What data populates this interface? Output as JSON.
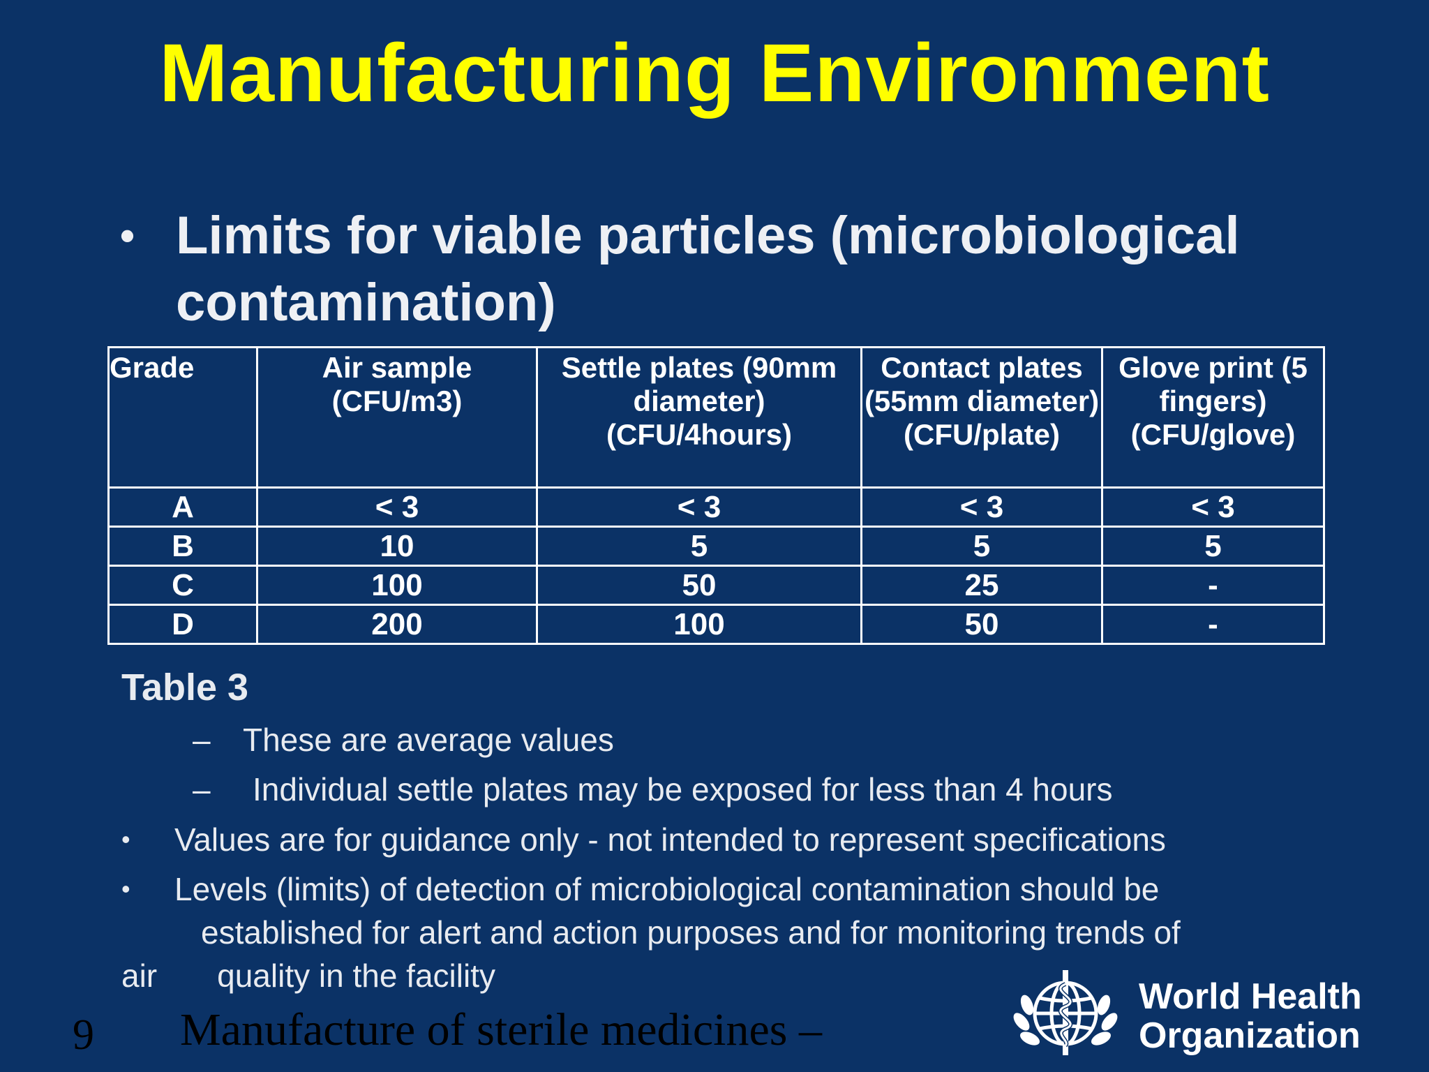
{
  "slide": {
    "title": "Manufacturing Environment",
    "main_bullet": "Limits for viable particles (microbiological contamination)",
    "table": {
      "headers": [
        "Grade",
        "Air sample (CFU/m3)",
        "Settle plates (90mm diameter) (CFU/4hours)",
        "Contact plates (55mm diameter) (CFU/plate)",
        "Glove print (5 fingers) (CFU/glove)"
      ],
      "rows": [
        [
          "A",
          "< 3",
          "< 3",
          "< 3",
          "< 3"
        ],
        [
          "B",
          "10",
          "5",
          "5",
          "5"
        ],
        [
          "C",
          "100",
          "50",
          "25",
          "-"
        ],
        [
          "D",
          "200",
          "100",
          "50",
          "-"
        ]
      ]
    },
    "caption": "Table 3",
    "sub_bullets": [
      "These are average values",
      "Individual settle plates may be exposed for less than 4 hours"
    ],
    "bullets": [
      "Values are for guidance only - not intended to represent specifications",
      "Levels (limits) of detection of microbiological contamination should be established for alert and action purposes and for monitoring trends of air quality in the facility"
    ],
    "bullet_2_lines": [
      "Levels (limits) of detection of microbiological contamination should be",
      "established for alert and action purposes and for monitoring trends of",
      "air",
      "quality in the facility"
    ],
    "page_number": "9",
    "footer_title": "Manufacture of sterile medicines –",
    "organization": "World Health Organization",
    "org_lines": [
      "World Health",
      "Organization"
    ]
  }
}
